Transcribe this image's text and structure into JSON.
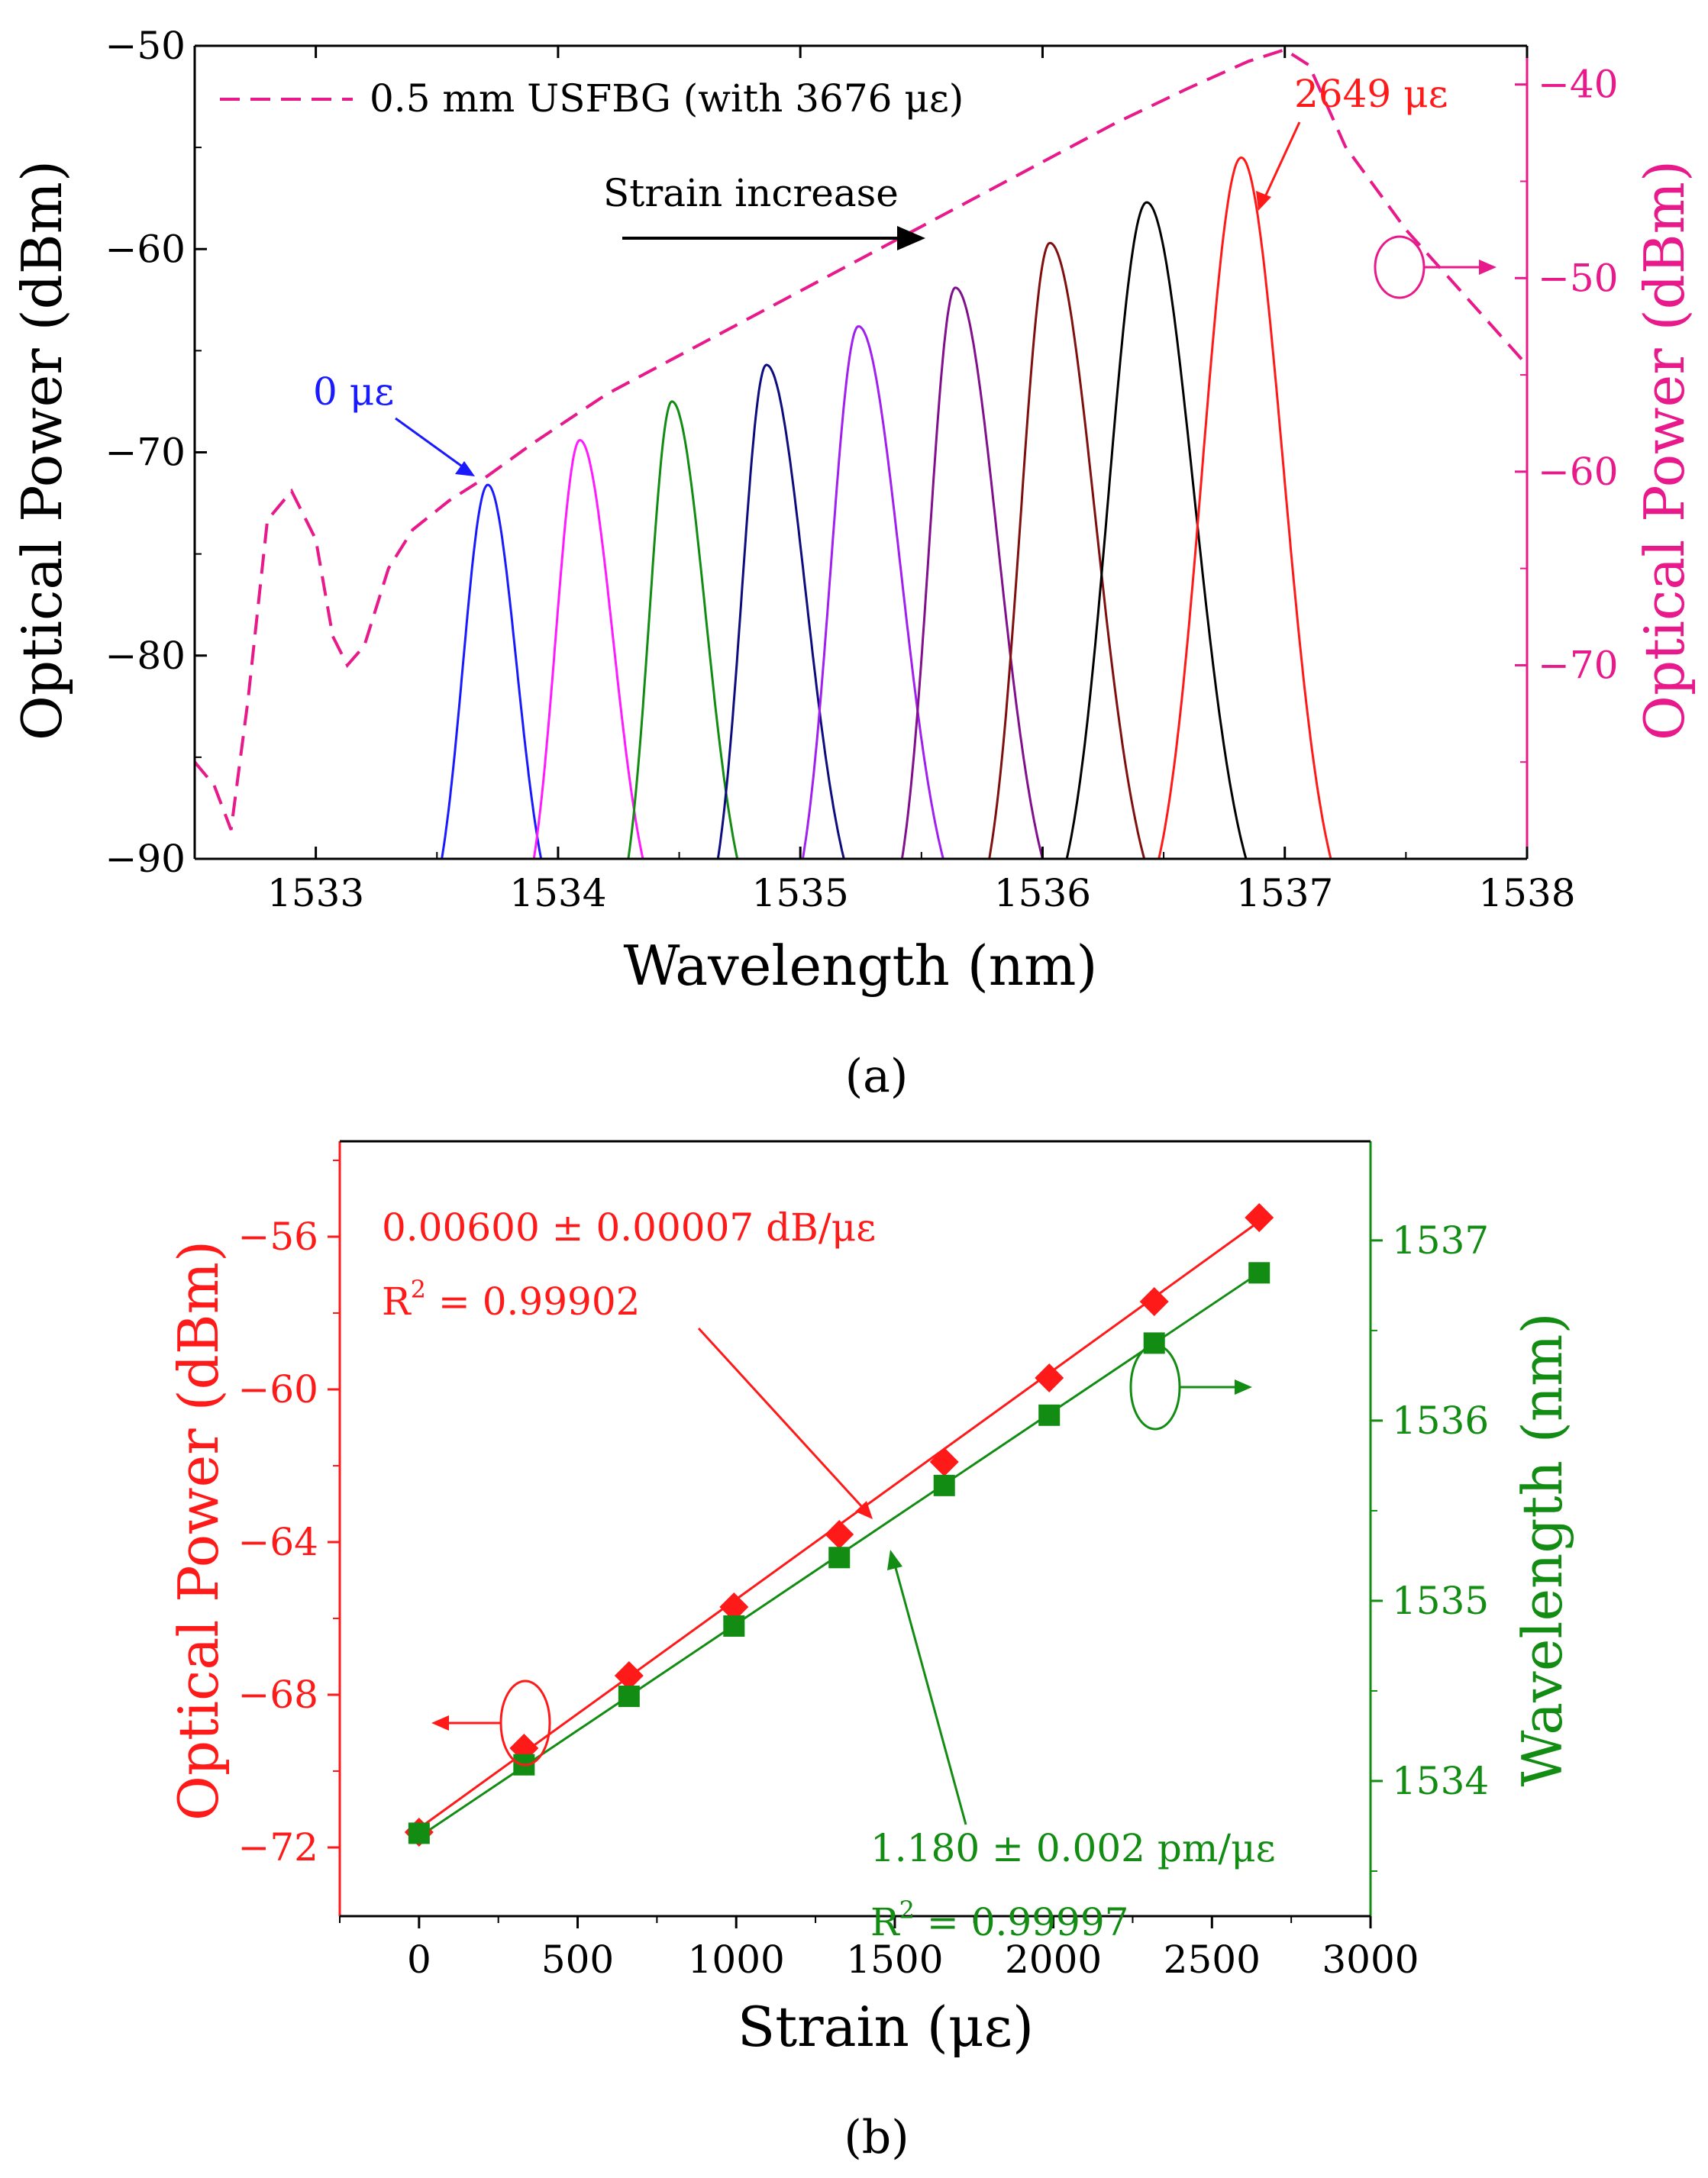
{
  "panel_a": {
    "caption": "(a)",
    "legend_label": "0.5 mm USFBG (with 3676 με)",
    "arrow_text": "Strain increase",
    "label_start": "0 με",
    "label_end": "2649 με",
    "colors": {
      "usfbg": "#e8198b",
      "left_axis": "#000000",
      "right_axis": "#e8198b",
      "label_start": "#1a1aff",
      "label_end": "#ff1a1a"
    }
  },
  "panel_b": {
    "caption": "(b)",
    "power_fit_slope": "0.00600 ± 0.00007 dB/με",
    "power_fit_r2_base": "R",
    "power_fit_r2_exp": "2",
    "power_fit_r2_value": " = 0.99902",
    "wave_fit_slope": "1.180 ± 0.002 pm/με",
    "wave_fit_r2_base": "R",
    "wave_fit_r2_exp": "2",
    "wave_fit_r2_value": " = 0.99997",
    "colors": {
      "power": "#ff1a1a",
      "wavelength": "#128c12",
      "axis": "#000000"
    }
  },
  "chart_data": [
    {
      "type": "line",
      "title": "",
      "xlabel": "Wavelength (nm)",
      "ylabel": "Optical Power (dBm)",
      "y2label": "Optical Power (dBm)",
      "xlim": [
        1532.5,
        1538
      ],
      "ylim": [
        -90,
        -50
      ],
      "y2lim": [
        -80,
        -38
      ],
      "xticks": [
        1533,
        1534,
        1535,
        1536,
        1537,
        1538
      ],
      "yticks": [
        -90,
        -80,
        -70,
        -60,
        -50
      ],
      "y2ticks": [
        -70,
        -60,
        -50,
        -40
      ],
      "legend": "top-left",
      "spectra": [
        {
          "strain_ue": 0,
          "peak_nm": 1533.71,
          "peak_dbm": -71.6,
          "start_nm": 1533.52,
          "end_nm": 1533.93,
          "color": "#1a1aff"
        },
        {
          "strain_ue": 331,
          "peak_nm": 1534.09,
          "peak_dbm": -69.4,
          "start_nm": 1533.9,
          "end_nm": 1534.35,
          "color": "#ff1aff"
        },
        {
          "strain_ue": 662,
          "peak_nm": 1534.47,
          "peak_dbm": -67.5,
          "start_nm": 1534.29,
          "end_nm": 1534.74,
          "color": "#128c12"
        },
        {
          "strain_ue": 993,
          "peak_nm": 1534.86,
          "peak_dbm": -65.7,
          "start_nm": 1534.66,
          "end_nm": 1535.18,
          "color": "#0d0d80"
        },
        {
          "strain_ue": 1325,
          "peak_nm": 1535.24,
          "peak_dbm": -63.8,
          "start_nm": 1535.01,
          "end_nm": 1535.59,
          "color": "#a020f0"
        },
        {
          "strain_ue": 1656,
          "peak_nm": 1535.64,
          "peak_dbm": -61.9,
          "start_nm": 1535.42,
          "end_nm": 1536.0,
          "color": "#80108c"
        },
        {
          "strain_ue": 1987,
          "peak_nm": 1536.03,
          "peak_dbm": -59.7,
          "start_nm": 1535.78,
          "end_nm": 1536.42,
          "color": "#801010"
        },
        {
          "strain_ue": 2318,
          "peak_nm": 1536.43,
          "peak_dbm": -57.7,
          "start_nm": 1536.1,
          "end_nm": 1536.84,
          "color": "#000000"
        },
        {
          "strain_ue": 2649,
          "peak_nm": 1536.82,
          "peak_dbm": -55.5,
          "start_nm": 1536.48,
          "end_nm": 1537.19,
          "color": "#ff1a1a"
        }
      ],
      "usfbg_dashed": {
        "name": "0.5 mm USFBG (with 3676 με)",
        "axis": "right",
        "x": [
          1532.5,
          1532.58,
          1532.65,
          1532.72,
          1532.8,
          1532.9,
          1533.0,
          1533.07,
          1533.13,
          1533.2,
          1533.3,
          1533.4,
          1533.55,
          1533.7,
          1533.9,
          1534.2,
          1534.5,
          1534.8,
          1535.1,
          1535.4,
          1535.7,
          1536.0,
          1536.3,
          1536.6,
          1536.85,
          1537.0,
          1537.1,
          1537.25,
          1537.5,
          1537.75,
          1538.0
        ],
        "y": [
          -75.0,
          -76.2,
          -78.5,
          -71.8,
          -62.5,
          -61.0,
          -63.5,
          -68.5,
          -70.0,
          -69.0,
          -65.0,
          -63.0,
          -61.5,
          -60.3,
          -58.5,
          -56.0,
          -54.0,
          -52.0,
          -50.0,
          -48.0,
          -46.0,
          -44.0,
          -42.0,
          -40.2,
          -38.8,
          -38.2,
          -39.0,
          -43.2,
          -47.5,
          -51.0,
          -54.5
        ]
      }
    },
    {
      "type": "scatter",
      "title": "",
      "xlabel": "Strain (με)",
      "ylabel": "Optical Power (dBm)",
      "y2label": "Wavelength (nm)",
      "xlim": [
        -250,
        3000
      ],
      "ylim": [
        -73.8,
        -53.5
      ],
      "y2lim": [
        1533.25,
        1537.55
      ],
      "xticks": [
        0,
        500,
        1000,
        1500,
        2000,
        2500,
        3000
      ],
      "yticks": [
        -72,
        -68,
        -64,
        -60,
        -56
      ],
      "y2ticks": [
        1534,
        1535,
        1536,
        1537
      ],
      "categories": [
        0,
        331,
        662,
        993,
        1325,
        1656,
        1987,
        2318,
        2649
      ],
      "series": [
        {
          "name": "Optical Power",
          "axis": "left",
          "marker": "diamond",
          "values": [
            -71.6,
            -69.4,
            -67.5,
            -65.7,
            -63.8,
            -61.9,
            -59.7,
            -57.7,
            -55.5
          ],
          "fit": [
            -71.5,
            -55.6
          ]
        },
        {
          "name": "Wavelength",
          "axis": "right",
          "marker": "square",
          "values": [
            1533.71,
            1534.09,
            1534.47,
            1534.86,
            1535.24,
            1535.64,
            1536.03,
            1536.43,
            1536.82
          ],
          "fit": [
            1533.69,
            1536.82
          ]
        }
      ]
    }
  ]
}
